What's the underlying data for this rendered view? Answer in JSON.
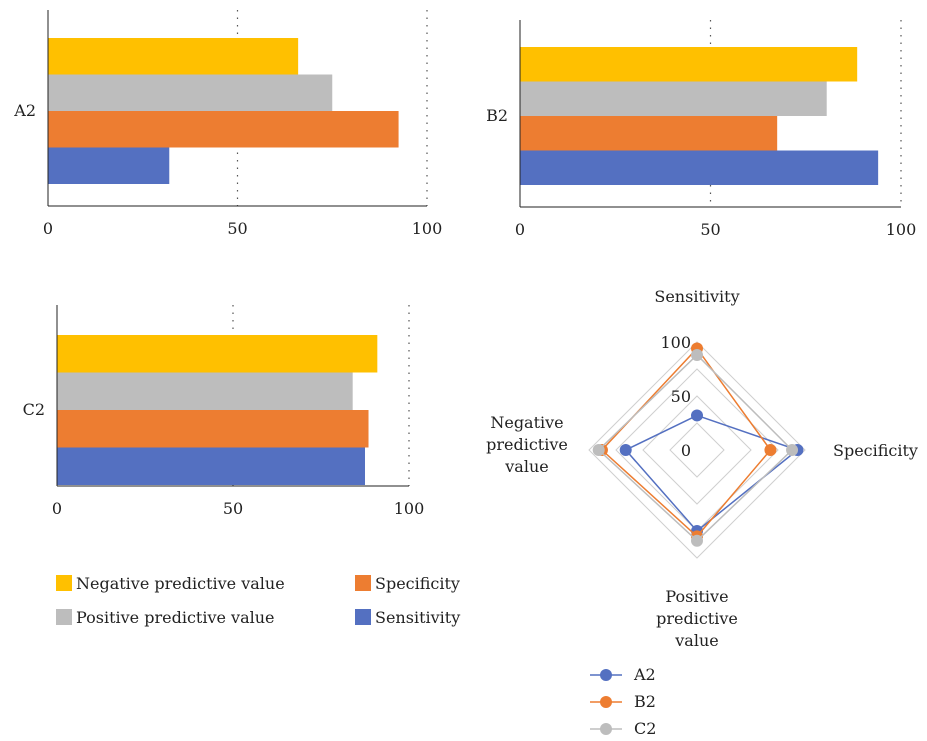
{
  "chart_data": [
    {
      "type": "bar",
      "orientation": "horizontal",
      "category": "A2",
      "series": [
        {
          "name": "Negative predictive value",
          "value": 66,
          "color": "#FFC000"
        },
        {
          "name": "Positive predictive value",
          "value": 75,
          "color": "#BDBDBD"
        },
        {
          "name": "Specificity",
          "value": 92.5,
          "color": "#ED7D31"
        },
        {
          "name": "Sensitivity",
          "value": 32,
          "color": "#5470C1"
        }
      ],
      "xlim": [
        0,
        100
      ],
      "xticks": [
        "0",
        "50",
        "100"
      ],
      "grid": "vertical dotted at 50 and 100"
    },
    {
      "type": "bar",
      "orientation": "horizontal",
      "category": "B2",
      "series": [
        {
          "name": "Negative predictive value",
          "value": 88.5,
          "color": "#FFC000"
        },
        {
          "name": "Positive predictive value",
          "value": 80.5,
          "color": "#BDBDBD"
        },
        {
          "name": "Specificity",
          "value": 67.5,
          "color": "#ED7D31"
        },
        {
          "name": "Sensitivity",
          "value": 94,
          "color": "#5470C1"
        }
      ],
      "xlim": [
        0,
        100
      ],
      "xticks": [
        "0",
        "50",
        "100"
      ],
      "grid": "vertical dotted at 50 and 100"
    },
    {
      "type": "bar",
      "orientation": "horizontal",
      "category": "C2",
      "series": [
        {
          "name": "Negative predictive value",
          "value": 91,
          "color": "#FFC000"
        },
        {
          "name": "Positive predictive value",
          "value": 84,
          "color": "#BDBDBD"
        },
        {
          "name": "Specificity",
          "value": 88.5,
          "color": "#ED7D31"
        },
        {
          "name": "Sensitivity",
          "value": 87.5,
          "color": "#5470C1"
        }
      ],
      "xlim": [
        0,
        100
      ],
      "xticks": [
        "0",
        "50",
        "100"
      ],
      "grid": "vertical dotted at 50 and 100"
    },
    {
      "type": "radar",
      "axes": [
        "Sensitivity",
        "Specificity",
        "Positive predictive value",
        "Negative predictive value"
      ],
      "axis_labels": [
        [
          "Sensitivity"
        ],
        [
          "Specificity"
        ],
        [
          "Positive",
          "predictive",
          "value"
        ],
        [
          "Negative",
          "predictive",
          "value"
        ]
      ],
      "rlim": [
        0,
        100
      ],
      "rticks": [
        "0",
        "50",
        "100"
      ],
      "series": [
        {
          "name": "A2",
          "color": "#5470C1",
          "values": [
            32,
            93,
            75,
            66
          ]
        },
        {
          "name": "B2",
          "color": "#ED7D31",
          "values": [
            94,
            68,
            80,
            88
          ]
        },
        {
          "name": "C2",
          "color": "#BDBDBD",
          "values": [
            88,
            88,
            84,
            91
          ]
        }
      ]
    }
  ],
  "bar_legend": [
    {
      "name": "Negative predictive value",
      "color": "#FFC000"
    },
    {
      "name": "Specificity",
      "color": "#ED7D31"
    },
    {
      "name": "Positive predictive value",
      "color": "#BDBDBD"
    },
    {
      "name": "Sensitivity",
      "color": "#5470C1"
    }
  ],
  "radar_legend": [
    {
      "name": "A2",
      "color": "#5470C1"
    },
    {
      "name": "B2",
      "color": "#ED7D31"
    },
    {
      "name": "C2",
      "color": "#BDBDBD"
    }
  ]
}
